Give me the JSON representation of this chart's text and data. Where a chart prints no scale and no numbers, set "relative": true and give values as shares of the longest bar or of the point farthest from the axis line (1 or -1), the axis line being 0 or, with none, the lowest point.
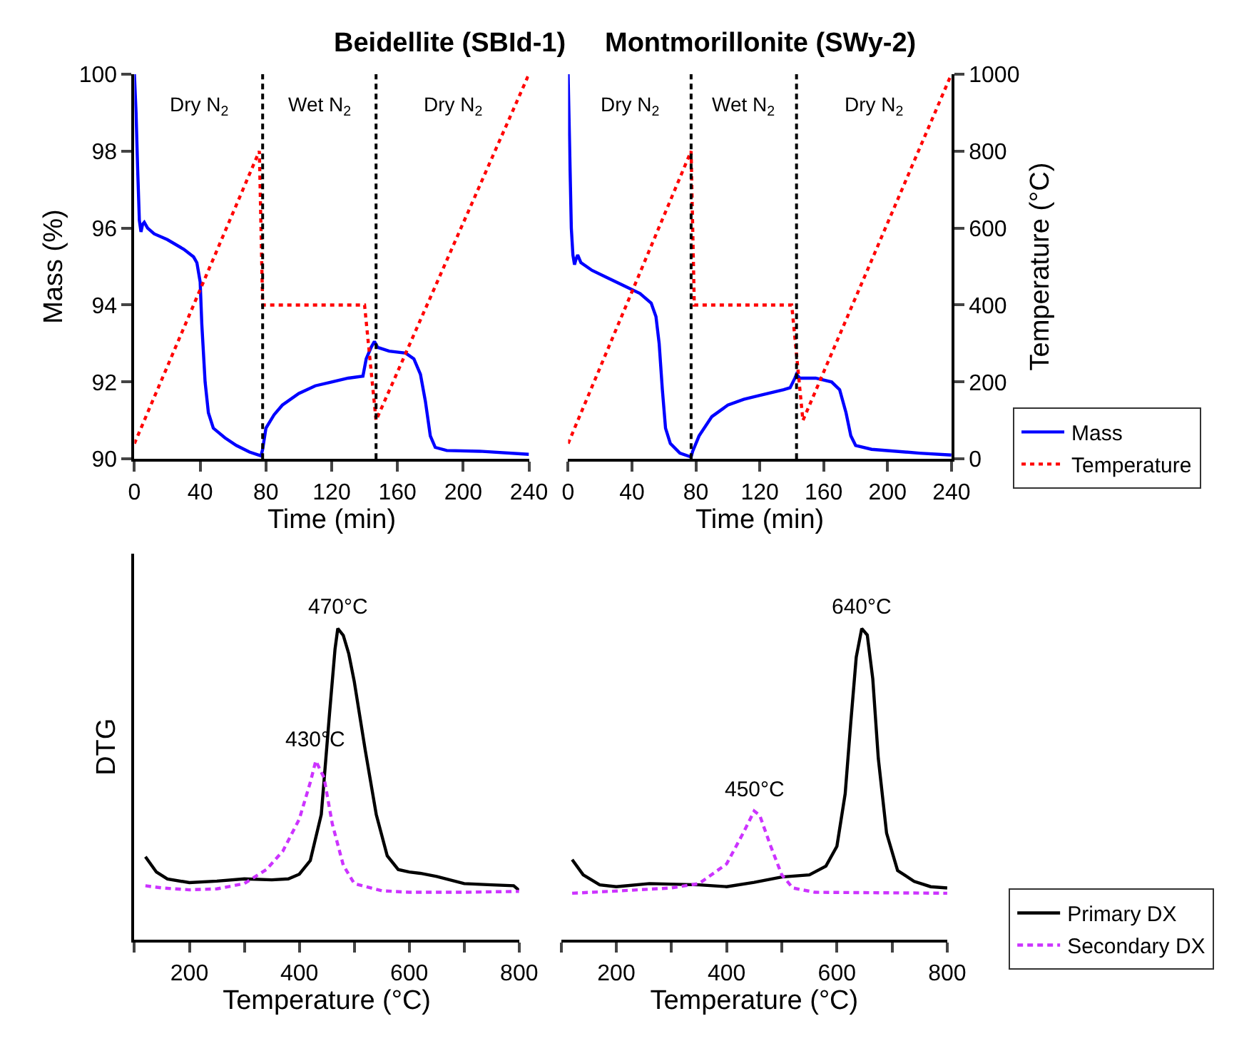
{
  "chart_data": [
    {
      "type": "line",
      "title": "Beidellite (SBId-1)",
      "xlabel": "Time (min)",
      "ylabel": "Mass (%)",
      "xlim": [
        0,
        240
      ],
      "xticks": [
        0,
        40,
        80,
        120,
        160,
        200,
        240
      ],
      "ylim": [
        90,
        100
      ],
      "yticks": [
        90,
        92,
        94,
        96,
        98,
        100
      ],
      "y2lim": [
        0,
        1000
      ],
      "tick_labels": [
        "x",
        "y"
      ],
      "legend": false,
      "series": [
        {
          "color": "#0000ff",
          "line_style": "solid",
          "x": [
            0,
            1,
            2,
            3,
            4,
            5,
            6,
            8,
            12,
            20,
            30,
            36,
            38,
            40,
            41,
            43,
            45,
            48,
            55,
            62,
            70,
            77,
            78,
            80,
            85,
            90,
            100,
            110,
            120,
            130,
            139,
            141,
            144,
            146,
            148,
            155,
            165,
            170,
            174,
            177,
            180,
            183,
            190,
            210,
            240
          ],
          "values": [
            100,
            99,
            97.5,
            96.2,
            95.9,
            96.1,
            96.15,
            96,
            95.85,
            95.7,
            95.45,
            95.25,
            95.1,
            94.6,
            93.5,
            92,
            91.2,
            90.8,
            90.55,
            90.35,
            90.18,
            90.08,
            90.25,
            90.8,
            91.15,
            91.4,
            91.7,
            91.9,
            92.0,
            92.1,
            92.15,
            92.6,
            92.9,
            93.05,
            92.9,
            92.8,
            92.75,
            92.6,
            92.2,
            91.5,
            90.6,
            90.3,
            90.22,
            90.2,
            90.12
          ]
        },
        {
          "color": "#ff0000",
          "line_style": "dotted",
          "axis": "y2",
          "x": [
            0,
            76,
            78,
            140,
            147,
            240
          ],
          "values": [
            40,
            800,
            400,
            400,
            100,
            1000
          ]
        }
      ],
      "ref_lines": [
        {
          "axis": "x",
          "value": 78,
          "color": "#000000",
          "line_style": "dashed"
        },
        {
          "axis": "x",
          "value": 147,
          "color": "#000000",
          "line_style": "dashed"
        }
      ],
      "annotations": [
        "Dry N$_{2}$",
        "Wet N$_{2}$",
        "Dry N$_{2}$"
      ]
    },
    {
      "type": "line",
      "title": "Montmorillonite (SWy-2)",
      "xlabel": "Time (min)",
      "y2label": "Temperature (°C)",
      "xlim": [
        0,
        240
      ],
      "xticks": [
        0,
        40,
        80,
        120,
        160,
        200,
        240
      ],
      "ylim": [
        90,
        100
      ],
      "y2lim": [
        0,
        1000
      ],
      "y2ticks": [
        0,
        200,
        400,
        600,
        800,
        1000
      ],
      "tick_labels": [
        "x",
        "y2"
      ],
      "legend": "right",
      "series": [
        {
          "name": "Mass",
          "color": "#0000ff",
          "line_style": "solid",
          "x": [
            0,
            1,
            2,
            3,
            4,
            5,
            6,
            8,
            15,
            25,
            35,
            45,
            52,
            55,
            57,
            59,
            61,
            64,
            70,
            77,
            78,
            82,
            90,
            100,
            110,
            120,
            135,
            139,
            142,
            143,
            145,
            155,
            165,
            170,
            174,
            177,
            180,
            190,
            220,
            240
          ],
          "values": [
            100,
            98,
            96,
            95.3,
            95.05,
            95.2,
            95.3,
            95.1,
            94.9,
            94.7,
            94.5,
            94.3,
            94.05,
            93.7,
            93,
            91.8,
            90.8,
            90.4,
            90.15,
            90.05,
            90.2,
            90.6,
            91.1,
            91.4,
            91.55,
            91.65,
            91.8,
            91.85,
            92.1,
            92.2,
            92.1,
            92.1,
            92.0,
            91.8,
            91.2,
            90.6,
            90.35,
            90.25,
            90.15,
            90.1
          ]
        },
        {
          "name": "Temperature",
          "color": "#ff0000",
          "line_style": "dotted",
          "axis": "y2",
          "x": [
            0,
            77,
            79,
            140,
            147,
            240
          ],
          "values": [
            40,
            800,
            400,
            400,
            100,
            1000
          ]
        }
      ],
      "ref_lines": [
        {
          "axis": "x",
          "value": 77,
          "color": "#000000",
          "line_style": "dashed"
        },
        {
          "axis": "x",
          "value": 143,
          "color": "#000000",
          "line_style": "dashed"
        }
      ],
      "annotations": [
        "Dry N$_{2}$",
        "Wet N$_{2}$",
        "Dry N$_{2}$"
      ]
    },
    {
      "type": "line",
      "xlabel": "Temperature (°C)",
      "ylabel": "DTG",
      "relative": true,
      "xlim": [
        100,
        800
      ],
      "xticks": [
        {
          "value": 100,
          "label": null
        },
        200,
        {
          "value": 300,
          "label": null
        },
        400,
        {
          "value": 500,
          "label": null
        },
        600,
        {
          "value": 700,
          "label": null
        },
        800
      ],
      "tick_labels": "x",
      "legend": false,
      "series": [
        {
          "color": "#000000",
          "line_style": "solid",
          "x": [
            120,
            140,
            160,
            200,
            250,
            300,
            350,
            380,
            400,
            420,
            440,
            455,
            465,
            470,
            480,
            490,
            500,
            520,
            540,
            560,
            580,
            600,
            620,
            650,
            700,
            750,
            790,
            800
          ],
          "values": [
            0.267,
            0.218,
            0.196,
            0.184,
            0.189,
            0.196,
            0.193,
            0.196,
            0.211,
            0.255,
            0.403,
            0.727,
            0.934,
            1,
            0.978,
            0.919,
            0.83,
            0.609,
            0.403,
            0.27,
            0.226,
            0.218,
            0.214,
            0.204,
            0.181,
            0.177,
            0.174,
            0.159
          ]
        },
        {
          "color": "#cc33ff",
          "line_style": "dashed",
          "x": [
            120,
            150,
            200,
            250,
            300,
            340,
            370,
            400,
            420,
            430,
            445,
            460,
            480,
            500,
            550,
            600,
            700,
            800
          ],
          "values": [
            0.174,
            0.167,
            0.161,
            0.164,
            0.181,
            0.226,
            0.285,
            0.388,
            0.506,
            0.575,
            0.521,
            0.373,
            0.24,
            0.181,
            0.158,
            0.153,
            0.153,
            0.156
          ]
        }
      ],
      "annotations": [
        {
          "text": "470°C",
          "x": 470,
          "y": 1
        },
        {
          "text": "430°C",
          "x": 430,
          "y": 0.575
        }
      ]
    },
    {
      "type": "line",
      "xlabel": "Temperature (°C)",
      "relative": true,
      "xlim": [
        100,
        800
      ],
      "xticks": [
        {
          "value": 100,
          "label": null
        },
        200,
        {
          "value": 300,
          "label": null
        },
        400,
        {
          "value": 500,
          "label": null
        },
        600,
        {
          "value": 700,
          "label": null
        },
        800
      ],
      "tick_labels": "x",
      "legend": "right",
      "series": [
        {
          "name": "Primary DX",
          "color": "#000000",
          "line_style": "solid",
          "x": [
            120,
            140,
            170,
            200,
            260,
            350,
            400,
            450,
            500,
            550,
            580,
            600,
            615,
            625,
            635,
            645,
            655,
            665,
            675,
            690,
            710,
            740,
            770,
            800
          ],
          "values": [
            0.258,
            0.209,
            0.177,
            0.171,
            0.181,
            0.177,
            0.171,
            0.185,
            0.202,
            0.209,
            0.237,
            0.301,
            0.47,
            0.696,
            0.908,
            1,
            0.979,
            0.838,
            0.583,
            0.343,
            0.223,
            0.188,
            0.171,
            0.167
          ]
        },
        {
          "name": "Secondary DX",
          "color": "#cc33ff",
          "line_style": "dashed",
          "x": [
            120,
            200,
            300,
            350,
            400,
            430,
            450,
            460,
            480,
            500,
            520,
            560,
            800
          ],
          "values": [
            0.15,
            0.157,
            0.167,
            0.181,
            0.244,
            0.343,
            0.414,
            0.4,
            0.301,
            0.209,
            0.167,
            0.153,
            0.15
          ]
        }
      ],
      "annotations": [
        {
          "text": "640°C",
          "x": 645,
          "y": 1
        },
        {
          "text": "450°C",
          "x": 450,
          "y": 0.414
        }
      ]
    }
  ]
}
